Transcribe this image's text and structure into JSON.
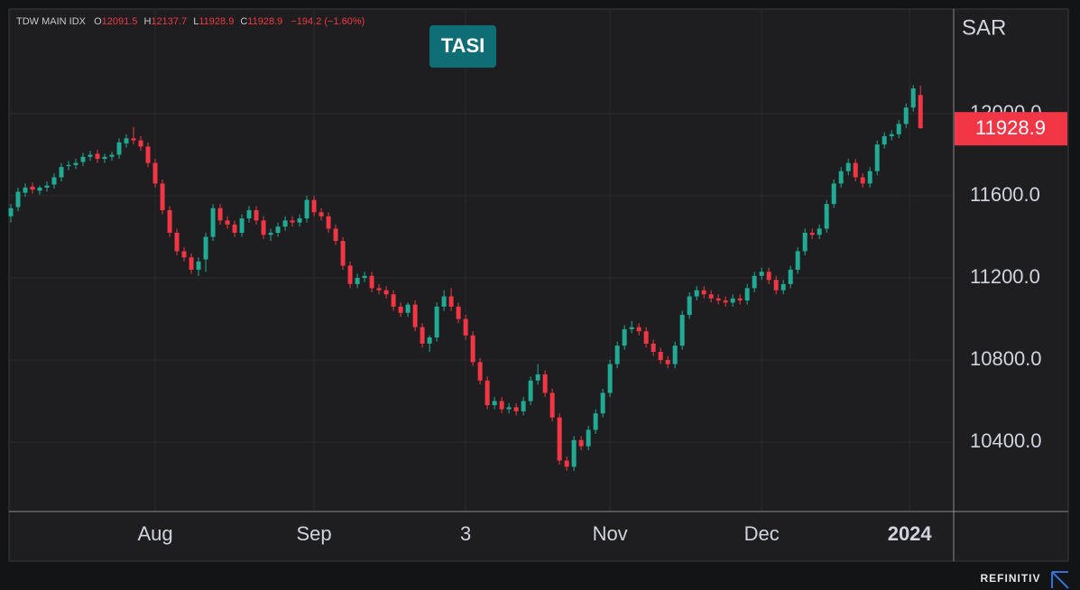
{
  "chart_data": {
    "type": "candlestick",
    "title": "TDW MAIN IDX",
    "badge": "TASI",
    "unit": "SAR",
    "source": "REFINITIV",
    "ohlc_labels": [
      "O",
      "H",
      "L",
      "C"
    ],
    "change": "−194.2 (−1.60%)",
    "up_color": "#22ab94",
    "down_color": "#f23645",
    "grid": true,
    "open": [
      11500,
      11545,
      11615,
      11645,
      11625,
      11640,
      11655,
      11690,
      11745,
      11750,
      11765,
      11790,
      11805,
      11780,
      11790,
      11800,
      11855,
      11880,
      11870,
      11840,
      11760,
      11660,
      11530,
      11420,
      11330,
      11300,
      11240,
      11290,
      11400,
      11540,
      11480,
      11460,
      11420,
      11490,
      11530,
      11480,
      11410,
      11420,
      11450,
      11480,
      11470,
      11490,
      11580,
      11520,
      11500,
      11440,
      11380,
      11260,
      11170,
      11200,
      11210,
      11150,
      11140,
      11120,
      11060,
      11030,
      11070,
      10960,
      10880,
      10910,
      11060,
      11110,
      11060,
      11000,
      10920,
      10790,
      10700,
      10580,
      10600,
      10560,
      10570,
      10550,
      10600,
      10700,
      10730,
      10640,
      10520,
      10310,
      10280,
      10410,
      10380,
      10460,
      10540,
      10640,
      10780,
      10870,
      10950,
      10960,
      10940,
      10880,
      10840,
      10800,
      10780,
      10870,
      11020,
      11110,
      11140,
      11120,
      11100,
      11090,
      11080,
      11100,
      11090,
      11150,
      11210,
      11230,
      11190,
      11140,
      11170,
      11240,
      11330,
      11420,
      11410,
      11440,
      11560,
      11660,
      11720,
      11760,
      11690,
      11660,
      11720,
      11850,
      11890,
      11900,
      11950,
      12030,
      12091.5
    ],
    "high": [
      11560,
      11640,
      11660,
      11665,
      11650,
      11670,
      11710,
      11760,
      11770,
      11780,
      11810,
      11820,
      11825,
      11805,
      11815,
      11880,
      11900,
      11935,
      11890,
      11860,
      11780,
      11680,
      11550,
      11440,
      11350,
      11320,
      11300,
      11420,
      11560,
      11560,
      11500,
      11480,
      11510,
      11550,
      11550,
      11500,
      11440,
      11470,
      11500,
      11500,
      11510,
      11600,
      11600,
      11540,
      11520,
      11460,
      11400,
      11280,
      11220,
      11230,
      11230,
      11170,
      11160,
      11140,
      11080,
      11080,
      11090,
      10980,
      10920,
      11080,
      11140,
      11150,
      11080,
      11020,
      10940,
      10810,
      10720,
      10620,
      10620,
      10590,
      10590,
      10620,
      10720,
      10780,
      10750,
      10660,
      10540,
      10330,
      10430,
      10430,
      10480,
      10560,
      10660,
      10800,
      10890,
      10970,
      10990,
      10980,
      10960,
      10900,
      10860,
      10820,
      10890,
      11040,
      11130,
      11160,
      11160,
      11140,
      11120,
      11110,
      11120,
      11120,
      11170,
      11230,
      11250,
      11250,
      11210,
      11190,
      11260,
      11350,
      11440,
      11440,
      11460,
      11580,
      11680,
      11740,
      11780,
      11780,
      11710,
      11740,
      11870,
      11910,
      11920,
      11970,
      12050,
      12140,
      12137.7
    ],
    "low": [
      11470,
      11525,
      11595,
      11610,
      11605,
      11620,
      11635,
      11670,
      11725,
      11730,
      11745,
      11770,
      11760,
      11760,
      11770,
      11780,
      11835,
      11850,
      11820,
      11740,
      11640,
      11510,
      11400,
      11310,
      11280,
      11220,
      11210,
      11230,
      11380,
      11460,
      11440,
      11400,
      11400,
      11470,
      11460,
      11390,
      11380,
      11400,
      11430,
      11450,
      11450,
      11470,
      11500,
      11480,
      11420,
      11360,
      11240,
      11150,
      11150,
      11180,
      11130,
      11120,
      11100,
      11040,
      11010,
      11010,
      10940,
      10860,
      10840,
      10890,
      11040,
      11040,
      10980,
      10900,
      10770,
      10680,
      10560,
      10560,
      10540,
      10540,
      10530,
      10530,
      10580,
      10680,
      10620,
      10500,
      10290,
      10260,
      10260,
      10360,
      10360,
      10440,
      10520,
      10620,
      10760,
      10850,
      10930,
      10920,
      10860,
      10820,
      10780,
      10760,
      10760,
      10850,
      11000,
      11090,
      11100,
      11080,
      11070,
      11060,
      11060,
      11070,
      11070,
      11130,
      11190,
      11170,
      11120,
      11120,
      11150,
      11220,
      11310,
      11390,
      11390,
      11420,
      11540,
      11640,
      11700,
      11670,
      11640,
      11640,
      11700,
      11830,
      11870,
      11880,
      11930,
      12010,
      11928.9
    ],
    "close": [
      11540,
      11620,
      11640,
      11630,
      11640,
      11650,
      11690,
      11740,
      11750,
      11760,
      11790,
      11800,
      11780,
      11790,
      11800,
      11860,
      11880,
      11870,
      11840,
      11760,
      11660,
      11530,
      11420,
      11330,
      11300,
      11240,
      11280,
      11400,
      11540,
      11480,
      11460,
      11420,
      11490,
      11530,
      11480,
      11410,
      11420,
      11450,
      11480,
      11470,
      11490,
      11580,
      11520,
      11500,
      11440,
      11380,
      11260,
      11170,
      11200,
      11210,
      11150,
      11140,
      11120,
      11060,
      11030,
      11070,
      10960,
      10880,
      10910,
      11060,
      11110,
      11060,
      11000,
      10920,
      10790,
      10700,
      10580,
      10600,
      10560,
      10570,
      10550,
      10600,
      10700,
      10730,
      10640,
      10520,
      10310,
      10280,
      10410,
      10380,
      10460,
      10540,
      10640,
      10780,
      10870,
      10950,
      10960,
      10940,
      10880,
      10840,
      10800,
      10780,
      10870,
      11020,
      11110,
      11140,
      11120,
      11100,
      11090,
      11080,
      11100,
      11090,
      11150,
      11210,
      11230,
      11190,
      11140,
      11170,
      11240,
      11330,
      11420,
      11410,
      11440,
      11560,
      11660,
      11720,
      11760,
      11690,
      11660,
      11720,
      11850,
      11890,
      11900,
      11950,
      12030,
      12123,
      11928.9
    ],
    "xlim": [
      -0.25,
      130.6
    ],
    "xticks": [
      {
        "value": 20,
        "label": "Aug"
      },
      {
        "value": 42,
        "label": "Sep"
      },
      {
        "value": 63,
        "label": "3"
      },
      {
        "value": 83,
        "label": "Nov"
      },
      {
        "value": 104,
        "label": "Dec"
      },
      {
        "value": 124.5,
        "label": "2024"
      }
    ],
    "ylim": [
      10062,
      12510
    ],
    "yticks": [
      {
        "value": 10400,
        "label": "10400.0"
      },
      {
        "value": 10800,
        "label": "10800.0"
      },
      {
        "value": 11200,
        "label": "11200.0"
      },
      {
        "value": 11600,
        "label": "11600.0"
      },
      {
        "value": 12000,
        "label": "12000.0"
      }
    ]
  }
}
